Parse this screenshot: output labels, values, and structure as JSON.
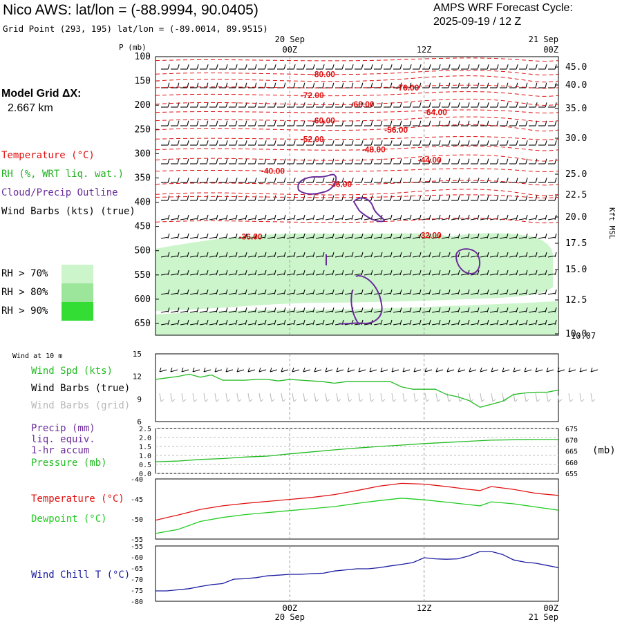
{
  "header": {
    "title": "Nico AWS:  lat/lon = (-88.9994, 90.0405)",
    "subtitle": "Grid Point (293, 195) lat/lon = (-89.0014, 89.9515)",
    "forecast_label": "AMPS WRF Forecast Cycle:",
    "forecast_cycle": "2025-09-19 / 12  Z",
    "model_grid_label": "Model Grid ΔX:",
    "model_grid_value": "2.667 km"
  },
  "time_axis": {
    "top_dates": [
      "20 Sep",
      "21 Sep"
    ],
    "ticks": [
      "00Z",
      "12Z",
      "00Z"
    ],
    "bottom_dates": [
      "20 Sep",
      "21 Sep"
    ]
  },
  "legend": {
    "temperature": "Temperature (°C)",
    "rh": "RH (%, WRT liq. wat.)",
    "cloud": "Cloud/Precip Outline",
    "wind": "Wind Barbs (kts) (true)",
    "rh_levels": [
      "RH > 70%",
      "RH > 80%",
      "RH > 90%"
    ]
  },
  "colors": {
    "temperature": "#e01010",
    "rh": "#20b020",
    "cloud": "#6a2c9a",
    "wind": "#000000",
    "wind_grid": "#b8b8b8",
    "rh70": "#ccf5cc",
    "rh80": "#9ce69c",
    "rh90": "#33dd33",
    "pressure": "#22bb22",
    "dewpoint": "#22cc22",
    "windchill": "#1a1aa0"
  },
  "panels": {
    "wind10m": {
      "title": "Wind at 10 m",
      "spd_label": "Wind Spd (kts)",
      "barbs_true_label": "Wind Barbs (true)",
      "barbs_grid_label": "Wind Barbs (grid)"
    },
    "precip": {
      "precip_label": "Precip (mm)",
      "liq_label": "liq. equiv.",
      "accum_label": "1-hr accum",
      "pressure_label": "Pressure (mb)",
      "right_unit": "(mb)"
    },
    "temp": {
      "temp_label": "Temperature (°C)",
      "dew_label": "Dewpoint (°C)"
    },
    "chill": {
      "label": "Wind Chill T (°C)"
    }
  },
  "chart_data": [
    {
      "type": "line",
      "name": "upper-air-cross-section",
      "y_axis_label": "P (mb)",
      "y_right_label": "Kft MSL",
      "pressure_ticks": [
        "100",
        "150",
        "200",
        "250",
        "300",
        "350",
        "400",
        "450",
        "500",
        "550",
        "600",
        "650"
      ],
      "height_ticks": [
        "45.0",
        "40.0",
        "35.0",
        "30.0",
        "25.0",
        "22.5",
        "20.0",
        "17.5",
        "15.0",
        "12.5",
        "10.0"
      ],
      "height_extra_tick": "10.07",
      "x_hours": [
        -12,
        24
      ],
      "temperature_labels": [
        {
          "label": "-80.00",
          "t": 3.0,
          "p": 136
        },
        {
          "label": "-76.00",
          "t": 10.5,
          "p": 164
        },
        {
          "label": "-72.00",
          "t": 2.0,
          "p": 180
        },
        {
          "label": "-68.00",
          "t": 6.5,
          "p": 198
        },
        {
          "label": "-64.00",
          "t": 13.0,
          "p": 215
        },
        {
          "label": "-60.00",
          "t": 3.0,
          "p": 232
        },
        {
          "label": "-56.00",
          "t": 9.5,
          "p": 251
        },
        {
          "label": "-52.00",
          "t": 2.0,
          "p": 270
        },
        {
          "label": "-48.00",
          "t": 7.5,
          "p": 292
        },
        {
          "label": "-44.00",
          "t": 12.5,
          "p": 313
        },
        {
          "label": "-40.00",
          "t": -1.5,
          "p": 336
        },
        {
          "label": "-36.00",
          "t": 4.5,
          "p": 363
        },
        {
          "label": "-36.00",
          "t": -3.5,
          "p": 471
        },
        {
          "label": "-32.00",
          "t": 12.5,
          "p": 468
        }
      ]
    },
    {
      "type": "line",
      "name": "wind-speed-10m",
      "ylim": [
        6,
        15
      ],
      "y_ticks": [
        "6",
        "9",
        "12",
        "15"
      ],
      "x": [
        -12,
        -11,
        -10,
        -9,
        -8,
        -7,
        -6,
        -5,
        -4,
        -3,
        -2,
        -1,
        0,
        1,
        2,
        3,
        4,
        5,
        6,
        7,
        8,
        9,
        10,
        11,
        12,
        13,
        14,
        15,
        16,
        17,
        18,
        19,
        20,
        21,
        22,
        23,
        24
      ],
      "values": [
        11.6,
        11.8,
        12.0,
        12.3,
        11.9,
        12.2,
        11.5,
        11.5,
        11.5,
        11.6,
        11.6,
        11.4,
        11.6,
        11.5,
        11.4,
        11.3,
        11.1,
        11.3,
        11.3,
        11.3,
        11.3,
        11.3,
        10.6,
        10.3,
        10.3,
        10.3,
        9.6,
        9.3,
        8.8,
        7.9,
        8.3,
        8.7,
        9.6,
        9.8,
        9.9,
        9.9,
        10.2
      ]
    },
    {
      "type": "line",
      "name": "pressure",
      "ylim": [
        655,
        675
      ],
      "y_ticks_left": [
        "0.0",
        "0.5",
        "1.0",
        "1.5",
        "2.0",
        "2.5"
      ],
      "y_ticks_right": [
        "655",
        "660",
        "665",
        "670",
        "675"
      ],
      "x": [
        -12,
        -10,
        -8,
        -6,
        -4,
        -2,
        0,
        2,
        4,
        6,
        8,
        10,
        12,
        14,
        16,
        18,
        20,
        22,
        24
      ],
      "values": [
        660.2,
        660.5,
        661.2,
        661.6,
        662.3,
        662.7,
        663.7,
        664.6,
        665.5,
        666.3,
        667.0,
        667.6,
        668.3,
        668.8,
        669.3,
        669.8,
        670.0,
        670.1,
        670.1
      ]
    },
    {
      "type": "line",
      "name": "temperature-dewpoint",
      "ylim": [
        -55,
        -40
      ],
      "y_ticks": [
        "-40",
        "-45",
        "-50",
        "-55"
      ],
      "series": [
        {
          "name": "Temperature",
          "color": "#e01010",
          "x": [
            -12,
            -10,
            -8,
            -6,
            -4,
            -2,
            0,
            2,
            4,
            6,
            8,
            10,
            12,
            14,
            16,
            17,
            18,
            20,
            22,
            24
          ],
          "values": [
            -50.3,
            -49.0,
            -47.6,
            -46.7,
            -46.1,
            -45.6,
            -45.1,
            -44.6,
            -43.9,
            -42.9,
            -41.8,
            -41.1,
            -41.3,
            -41.9,
            -42.6,
            -42.9,
            -41.9,
            -42.6,
            -43.6,
            -44.1
          ]
        },
        {
          "name": "Dewpoint",
          "color": "#22cc22",
          "x": [
            -12,
            -10,
            -8,
            -6,
            -4,
            -2,
            0,
            2,
            4,
            6,
            8,
            10,
            12,
            14,
            16,
            17,
            18,
            20,
            22,
            24
          ],
          "values": [
            -53.6,
            -52.6,
            -50.6,
            -49.6,
            -48.9,
            -48.4,
            -47.9,
            -47.4,
            -46.9,
            -46.1,
            -45.4,
            -44.8,
            -45.2,
            -45.8,
            -46.4,
            -46.7,
            -45.7,
            -46.2,
            -47.0,
            -47.8
          ]
        }
      ]
    },
    {
      "type": "line",
      "name": "wind-chill",
      "ylim": [
        -80,
        -55
      ],
      "y_ticks": [
        "-55",
        "-60",
        "-65",
        "-70",
        "-75",
        "-80"
      ],
      "x": [
        -12,
        -11,
        -10,
        -9,
        -8,
        -7,
        -6,
        -5,
        -4,
        -3,
        -2,
        -1,
        0,
        1,
        2,
        3,
        4,
        5,
        6,
        7,
        8,
        9,
        10,
        11,
        12,
        13,
        14,
        15,
        16,
        17,
        18,
        19,
        20,
        21,
        22,
        23,
        24
      ],
      "values": [
        -75.3,
        -75.3,
        -74.8,
        -74.3,
        -73.3,
        -72.5,
        -72.0,
        -70.0,
        -69.8,
        -69.3,
        -68.5,
        -68.2,
        -67.8,
        -67.8,
        -67.5,
        -67.3,
        -66.3,
        -65.8,
        -65.3,
        -65.3,
        -64.8,
        -64.0,
        -63.3,
        -62.5,
        -60.3,
        -60.8,
        -61.0,
        -60.8,
        -59.5,
        -57.5,
        -57.5,
        -58.8,
        -61.3,
        -62.3,
        -62.8,
        -63.8,
        -64.8
      ]
    }
  ]
}
